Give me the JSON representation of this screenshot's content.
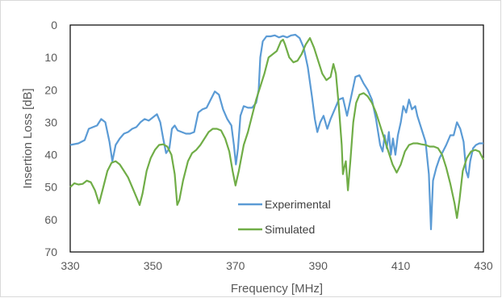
{
  "chart_data": {
    "type": "line",
    "xlabel": "Frequency [MHz]",
    "ylabel": "Insertion Loss [dB]",
    "xlim": [
      330,
      430
    ],
    "ylim": [
      0,
      70
    ],
    "y_reversed": true,
    "x_ticks": [
      330,
      350,
      370,
      390,
      410,
      430
    ],
    "y_ticks": [
      0,
      10,
      20,
      30,
      40,
      50,
      60,
      70
    ],
    "grid": false,
    "legend_position": "center",
    "series": [
      {
        "name": "Experimental",
        "color": "#5b9bd5",
        "points": [
          [
            330,
            37
          ],
          [
            332,
            36.5
          ],
          [
            333.5,
            35.5
          ],
          [
            334.5,
            32
          ],
          [
            335.5,
            31.5
          ],
          [
            336.5,
            31
          ],
          [
            337.5,
            29
          ],
          [
            338.5,
            30
          ],
          [
            339.5,
            36
          ],
          [
            340.2,
            42
          ],
          [
            341,
            37
          ],
          [
            342,
            35
          ],
          [
            343,
            33.5
          ],
          [
            344,
            33
          ],
          [
            345,
            32
          ],
          [
            346,
            31.5
          ],
          [
            347,
            30
          ],
          [
            348,
            29
          ],
          [
            349,
            29.5
          ],
          [
            350,
            28.5
          ],
          [
            351,
            27.5
          ],
          [
            351.8,
            30
          ],
          [
            352.5,
            35
          ],
          [
            353.2,
            39.5
          ],
          [
            354,
            38
          ],
          [
            354.6,
            32
          ],
          [
            355.3,
            31
          ],
          [
            356,
            32.5
          ],
          [
            357,
            33
          ],
          [
            358,
            33.5
          ],
          [
            359,
            33.5
          ],
          [
            360,
            33
          ],
          [
            361,
            27
          ],
          [
            362,
            26
          ],
          [
            363,
            25.5
          ],
          [
            364,
            23
          ],
          [
            365,
            20.5
          ],
          [
            366,
            21.5
          ],
          [
            367,
            26
          ],
          [
            368,
            29
          ],
          [
            369,
            31
          ],
          [
            369.6,
            37
          ],
          [
            370.1,
            43
          ],
          [
            370.6,
            38
          ],
          [
            371.2,
            28
          ],
          [
            372,
            25
          ],
          [
            373,
            25.5
          ],
          [
            374,
            25.5
          ],
          [
            375,
            24
          ],
          [
            375.6,
            20
          ],
          [
            376,
            10
          ],
          [
            376.6,
            5
          ],
          [
            377.5,
            3.5
          ],
          [
            378.5,
            3.5
          ],
          [
            379.5,
            3.2
          ],
          [
            380.5,
            3.8
          ],
          [
            381.5,
            3.4
          ],
          [
            382.5,
            3.8
          ],
          [
            383.5,
            3.2
          ],
          [
            384.5,
            3
          ],
          [
            385.5,
            4
          ],
          [
            386.5,
            7
          ],
          [
            387.5,
            13
          ],
          [
            388.5,
            22
          ],
          [
            389.2,
            29
          ],
          [
            389.8,
            33
          ],
          [
            390.5,
            30
          ],
          [
            391.3,
            28
          ],
          [
            392.2,
            32
          ],
          [
            393,
            29
          ],
          [
            394,
            26
          ],
          [
            395,
            23
          ],
          [
            396,
            22.5
          ],
          [
            397,
            28
          ],
          [
            398,
            22
          ],
          [
            399,
            16
          ],
          [
            400,
            15.5
          ],
          [
            401,
            18
          ],
          [
            402,
            20
          ],
          [
            403,
            23
          ],
          [
            404,
            29
          ],
          [
            405,
            37
          ],
          [
            405.6,
            39
          ],
          [
            406.1,
            34
          ],
          [
            406.6,
            38
          ],
          [
            407.1,
            33
          ],
          [
            407.6,
            40
          ],
          [
            408.1,
            35
          ],
          [
            408.7,
            40
          ],
          [
            409.3,
            34
          ],
          [
            410,
            30
          ],
          [
            410.6,
            25
          ],
          [
            411.3,
            27
          ],
          [
            412,
            23
          ],
          [
            412.7,
            26
          ],
          [
            413.5,
            25
          ],
          [
            414,
            28
          ],
          [
            415,
            32
          ],
          [
            416,
            36
          ],
          [
            416.8,
            46
          ],
          [
            417.3,
            63
          ],
          [
            417.8,
            48
          ],
          [
            418.6,
            44
          ],
          [
            419.4,
            41
          ],
          [
            420.2,
            39
          ],
          [
            421,
            37
          ],
          [
            422,
            34
          ],
          [
            422.8,
            34
          ],
          [
            423.6,
            30
          ],
          [
            424.4,
            32
          ],
          [
            425.2,
            36
          ],
          [
            425.8,
            45
          ],
          [
            426.3,
            47
          ],
          [
            426.8,
            42
          ],
          [
            427.5,
            38
          ],
          [
            428.2,
            37
          ],
          [
            429,
            36.5
          ],
          [
            430,
            36.5
          ]
        ]
      },
      {
        "name": "Simulated",
        "color": "#70ad47",
        "points": [
          [
            330,
            50
          ],
          [
            331,
            48.8
          ],
          [
            332,
            49.2
          ],
          [
            333,
            49
          ],
          [
            334,
            48
          ],
          [
            335,
            48.5
          ],
          [
            336,
            51
          ],
          [
            337,
            55
          ],
          [
            338,
            50
          ],
          [
            339,
            45
          ],
          [
            340,
            42.5
          ],
          [
            341,
            42
          ],
          [
            342,
            43
          ],
          [
            343,
            45
          ],
          [
            344,
            47
          ],
          [
            345,
            50
          ],
          [
            346,
            53
          ],
          [
            346.8,
            55.5
          ],
          [
            347.5,
            52
          ],
          [
            348.5,
            45
          ],
          [
            349.5,
            41
          ],
          [
            350.5,
            38.5
          ],
          [
            351.5,
            37
          ],
          [
            352.5,
            36.8
          ],
          [
            353.5,
            37.5
          ],
          [
            354.5,
            40
          ],
          [
            355.3,
            46
          ],
          [
            355.9,
            55.5
          ],
          [
            356.4,
            54
          ],
          [
            357.3,
            48
          ],
          [
            358.5,
            42
          ],
          [
            359.5,
            39.5
          ],
          [
            360.5,
            38.5
          ],
          [
            361.5,
            37
          ],
          [
            362.5,
            35
          ],
          [
            363.5,
            33
          ],
          [
            364.5,
            32
          ],
          [
            365.5,
            32
          ],
          [
            366.5,
            32.5
          ],
          [
            367.5,
            35
          ],
          [
            368.5,
            39
          ],
          [
            369.3,
            45
          ],
          [
            370,
            49.5
          ],
          [
            370.8,
            45
          ],
          [
            372,
            37
          ],
          [
            373,
            33
          ],
          [
            374,
            28
          ],
          [
            375,
            23
          ],
          [
            376,
            19
          ],
          [
            377,
            15
          ],
          [
            378,
            10
          ],
          [
            379,
            9
          ],
          [
            380,
            8
          ],
          [
            381,
            5
          ],
          [
            381.5,
            4.5
          ],
          [
            382,
            6
          ],
          [
            383,
            10
          ],
          [
            384,
            11.5
          ],
          [
            385,
            11
          ],
          [
            386,
            9
          ],
          [
            387,
            6
          ],
          [
            388,
            4
          ],
          [
            389,
            7
          ],
          [
            390,
            11
          ],
          [
            391,
            15
          ],
          [
            392,
            17
          ],
          [
            393,
            16
          ],
          [
            393.7,
            12
          ],
          [
            394.3,
            15
          ],
          [
            395,
            25
          ],
          [
            395.7,
            37
          ],
          [
            396,
            46
          ],
          [
            396.3,
            44
          ],
          [
            396.7,
            42
          ],
          [
            397.2,
            51
          ],
          [
            397.8,
            42
          ],
          [
            398.5,
            30
          ],
          [
            399.2,
            24
          ],
          [
            400,
            21.5
          ],
          [
            401,
            21
          ],
          [
            402,
            22
          ],
          [
            403,
            24
          ],
          [
            404,
            27
          ],
          [
            405,
            31
          ],
          [
            406,
            35
          ],
          [
            407,
            39
          ],
          [
            408,
            43
          ],
          [
            409,
            45.5
          ],
          [
            410,
            43
          ],
          [
            411,
            39
          ],
          [
            412,
            37
          ],
          [
            413,
            36.5
          ],
          [
            414,
            36.5
          ],
          [
            415,
            36.8
          ],
          [
            416,
            37
          ],
          [
            417,
            37.5
          ],
          [
            418,
            37.5
          ],
          [
            419,
            38
          ],
          [
            420,
            40
          ],
          [
            421,
            44
          ],
          [
            422,
            49
          ],
          [
            423,
            55
          ],
          [
            423.6,
            59.5
          ],
          [
            424.2,
            54
          ],
          [
            425,
            45
          ],
          [
            426,
            41
          ],
          [
            427,
            39
          ],
          [
            428,
            38.5
          ],
          [
            429,
            39
          ],
          [
            430,
            41.5
          ]
        ]
      }
    ]
  }
}
